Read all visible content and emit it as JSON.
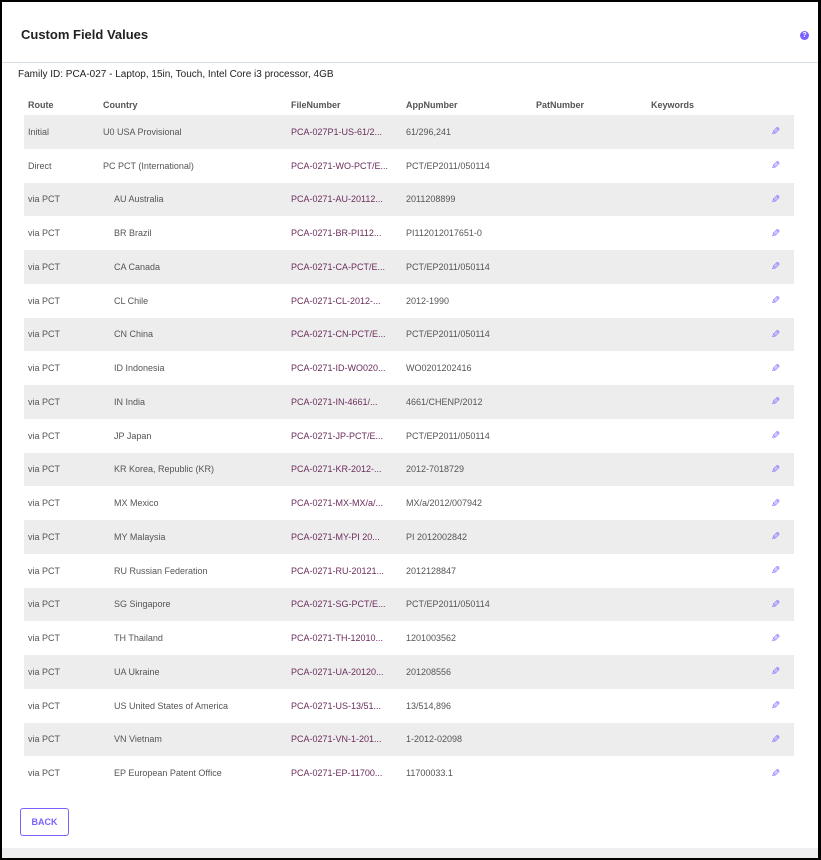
{
  "header": {
    "title": "Custom Field Values",
    "help_icon": "question-circle-icon"
  },
  "family": {
    "label": "Family ID: PCA-027 - Laptop, 15in, Touch, Intel Core i3 processor, 4GB"
  },
  "table": {
    "columns": [
      "Route",
      "Country",
      "FileNumber",
      "AppNumber",
      "PatNumber",
      "Keywords"
    ],
    "rows": [
      {
        "route": "Initial",
        "country": "U0 USA Provisional",
        "file": "PCA-027P1-US-61/2...",
        "app": "61/296,241",
        "pat": "",
        "keywords": ""
      },
      {
        "route": "Direct",
        "country": "PC PCT (International)",
        "file": "PCA-0271-WO-PCT/E...",
        "app": "PCT/EP2011/050114",
        "pat": "",
        "keywords": ""
      },
      {
        "route": "via PCT",
        "country": "AU Australia",
        "file": "PCA-0271-AU-20112...",
        "app": "2011208899",
        "pat": "",
        "keywords": ""
      },
      {
        "route": "via PCT",
        "country": "BR Brazil",
        "file": "PCA-0271-BR-PI112...",
        "app": "PI112012017651-0",
        "pat": "",
        "keywords": ""
      },
      {
        "route": "via PCT",
        "country": "CA Canada",
        "file": "PCA-0271-CA-PCT/E...",
        "app": "PCT/EP2011/050114",
        "pat": "",
        "keywords": ""
      },
      {
        "route": "via PCT",
        "country": "CL Chile",
        "file": "PCA-0271-CL-2012-...",
        "app": "2012-1990",
        "pat": "",
        "keywords": ""
      },
      {
        "route": "via PCT",
        "country": "CN China",
        "file": "PCA-0271-CN-PCT/E...",
        "app": "PCT/EP2011/050114",
        "pat": "",
        "keywords": ""
      },
      {
        "route": "via PCT",
        "country": "ID Indonesia",
        "file": "PCA-0271-ID-WO020...",
        "app": "WO0201202416",
        "pat": "",
        "keywords": ""
      },
      {
        "route": "via PCT",
        "country": "IN India",
        "file": "PCA-0271-IN-4661/...",
        "app": "4661/CHENP/2012",
        "pat": "",
        "keywords": ""
      },
      {
        "route": "via PCT",
        "country": "JP Japan",
        "file": "PCA-0271-JP-PCT/E...",
        "app": "PCT/EP2011/050114",
        "pat": "",
        "keywords": ""
      },
      {
        "route": "via PCT",
        "country": "KR Korea, Republic (KR)",
        "file": "PCA-0271-KR-2012-...",
        "app": "2012-7018729",
        "pat": "",
        "keywords": ""
      },
      {
        "route": "via PCT",
        "country": "MX Mexico",
        "file": "PCA-0271-MX-MX/a/...",
        "app": "MX/a/2012/007942",
        "pat": "",
        "keywords": ""
      },
      {
        "route": "via PCT",
        "country": "MY Malaysia",
        "file": "PCA-0271-MY-PI 20...",
        "app": "PI 2012002842",
        "pat": "",
        "keywords": ""
      },
      {
        "route": "via PCT",
        "country": "RU Russian Federation",
        "file": "PCA-0271-RU-20121...",
        "app": "2012128847",
        "pat": "",
        "keywords": ""
      },
      {
        "route": "via PCT",
        "country": "SG Singapore",
        "file": "PCA-0271-SG-PCT/E...",
        "app": "PCT/EP2011/050114",
        "pat": "",
        "keywords": ""
      },
      {
        "route": "via PCT",
        "country": "TH Thailand",
        "file": "PCA-0271-TH-12010...",
        "app": "1201003562",
        "pat": "",
        "keywords": ""
      },
      {
        "route": "via PCT",
        "country": "UA Ukraine",
        "file": "PCA-0271-UA-20120...",
        "app": "201208556",
        "pat": "",
        "keywords": ""
      },
      {
        "route": "via PCT",
        "country": "US United States of America",
        "file": "PCA-0271-US-13/51...",
        "app": "13/514,896",
        "pat": "",
        "keywords": ""
      },
      {
        "route": "via PCT",
        "country": "VN Vietnam",
        "file": "PCA-0271-VN-1-201...",
        "app": "1-2012-02098",
        "pat": "",
        "keywords": ""
      },
      {
        "route": "via PCT",
        "country": "EP European Patent Office",
        "file": "PCA-0271-EP-11700...",
        "app": "11700033.1",
        "pat": "",
        "keywords": ""
      }
    ],
    "edit_icon": "pencil-icon"
  },
  "footer": {
    "back_label": "BACK"
  },
  "colors": {
    "accent": "#7b61ff",
    "stripe": "#ededed",
    "file_text": "#6b2d5c"
  }
}
